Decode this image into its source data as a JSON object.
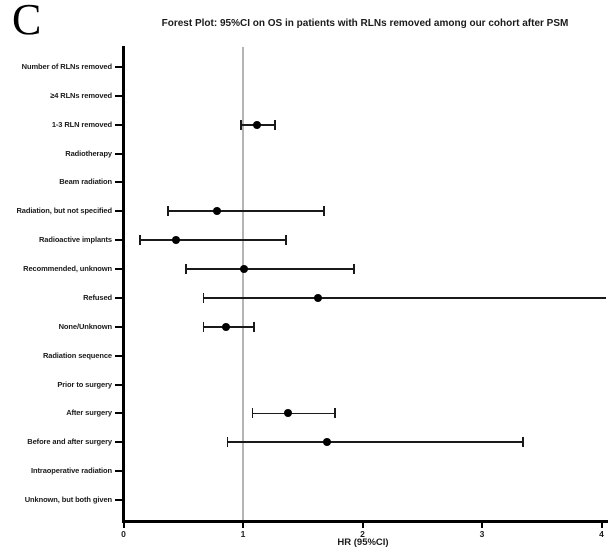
{
  "panel_label": "C",
  "chart_data": {
    "type": "forest",
    "title": "Forest Plot: 95%CI on OS in patients with RLNs removed among our cohort after PSM",
    "xlabel": "HR (95%CI)",
    "xlim": [
      0,
      4
    ],
    "xticks": [
      "0",
      "1",
      "2",
      "3",
      "4"
    ],
    "reference_line_x": 1,
    "grid": false,
    "legend": false,
    "rows": [
      {
        "label": "Number of RLNs removed",
        "hr": null,
        "lower": null,
        "upper": null
      },
      {
        "label": "≥4 RLNs removed",
        "hr": null,
        "lower": null,
        "upper": null
      },
      {
        "label": "1-3 RLN removed",
        "hr": 1.12,
        "lower": 0.98,
        "upper": 1.27
      },
      {
        "label": "Radiotherapy",
        "hr": null,
        "lower": null,
        "upper": null
      },
      {
        "label": "Beam radiation",
        "hr": null,
        "lower": null,
        "upper": null
      },
      {
        "label": "Radiation, but not specified",
        "hr": 0.78,
        "lower": 0.37,
        "upper": 1.68
      },
      {
        "label": "Radioactive implants",
        "hr": 0.44,
        "lower": 0.14,
        "upper": 1.36
      },
      {
        "label": "Recommended, unknown",
        "hr": 1.01,
        "lower": 0.52,
        "upper": 1.93
      },
      {
        "label": "Refused",
        "hr": 1.63,
        "lower": 0.67,
        "upper": 4.05,
        "upper_offscale": true
      },
      {
        "label": "None/Unknown",
        "hr": 0.86,
        "lower": 0.67,
        "upper": 1.09
      },
      {
        "label": "Radiation sequence",
        "hr": null,
        "lower": null,
        "upper": null
      },
      {
        "label": "Prior to surgery",
        "hr": null,
        "lower": null,
        "upper": null
      },
      {
        "label": "After surgery",
        "hr": 1.38,
        "lower": 1.08,
        "upper": 1.77
      },
      {
        "label": "Before and after surgery",
        "hr": 1.7,
        "lower": 0.87,
        "upper": 3.34
      },
      {
        "label": "Intraoperative radiation",
        "hr": null,
        "lower": null,
        "upper": null
      },
      {
        "label": "Unknown, but both given",
        "hr": null,
        "lower": null,
        "upper": null
      }
    ],
    "colors": {
      "axis": "#000000",
      "ci_line": "#1a1a1a",
      "marker": "#000000",
      "reference_line": "#b5b5b5",
      "text": "#1a1a1a"
    }
  }
}
